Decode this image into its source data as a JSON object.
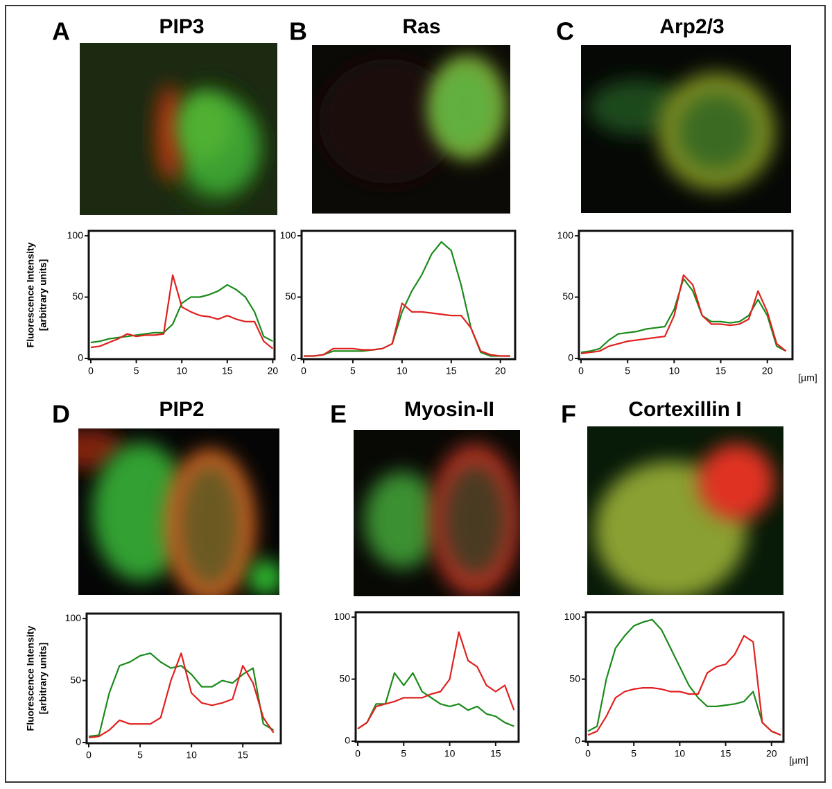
{
  "chart_data": [
    {
      "type": "line",
      "panel": "A",
      "title": "PIP3",
      "ylabel": [
        "Fluorescence Intensity",
        "[arbitrary units]"
      ],
      "x": [
        0,
        1,
        2,
        3,
        4,
        5,
        6,
        7,
        8,
        9,
        10,
        11,
        12,
        13,
        14,
        15,
        16,
        17,
        18,
        19,
        20
      ],
      "series": [
        {
          "color": "#1a8a1a",
          "values": [
            13,
            14,
            16,
            17,
            18,
            19,
            20,
            21,
            21,
            28,
            45,
            50,
            50,
            52,
            55,
            60,
            56,
            50,
            38,
            18,
            14
          ]
        },
        {
          "color": "#e0201f",
          "values": [
            9,
            10,
            13,
            16,
            20,
            18,
            19,
            19,
            20,
            68,
            42,
            38,
            35,
            34,
            32,
            35,
            32,
            30,
            30,
            14,
            8
          ]
        }
      ],
      "xlim": [
        0,
        20.2
      ],
      "ylim": [
        0,
        104
      ],
      "xticks": [
        0,
        5,
        10,
        15,
        20
      ],
      "yticks": [
        0,
        50,
        100
      ]
    },
    {
      "type": "line",
      "panel": "B",
      "title": "Ras",
      "x": [
        0,
        1,
        2,
        3,
        4,
        5,
        6,
        7,
        8,
        9,
        10,
        11,
        12,
        13,
        14,
        15,
        16,
        17,
        18,
        19,
        20,
        21
      ],
      "series": [
        {
          "color": "#1a8a1a",
          "values": [
            2,
            2,
            3,
            6,
            6,
            6,
            6,
            7,
            8,
            12,
            38,
            55,
            68,
            85,
            95,
            88,
            60,
            25,
            5,
            2,
            2,
            2
          ]
        },
        {
          "color": "#e0201f",
          "values": [
            2,
            2,
            3,
            8,
            8,
            8,
            7,
            7,
            8,
            12,
            45,
            38,
            38,
            37,
            36,
            35,
            35,
            25,
            6,
            3,
            2,
            2
          ]
        }
      ],
      "xlim": [
        0,
        21.5
      ],
      "ylim": [
        0,
        104
      ],
      "xticks": [
        0,
        5,
        10,
        15,
        20
      ],
      "yticks": [
        0,
        50,
        100
      ]
    },
    {
      "type": "line",
      "panel": "C",
      "title": "Arp2/3",
      "xunit": "[µm]",
      "x": [
        0,
        1,
        2,
        3,
        4,
        5,
        6,
        7,
        8,
        9,
        10,
        11,
        12,
        13,
        14,
        15,
        16,
        17,
        18,
        19,
        20,
        21,
        22
      ],
      "series": [
        {
          "color": "#1a8a1a",
          "values": [
            5,
            6,
            8,
            15,
            20,
            21,
            22,
            24,
            25,
            26,
            40,
            65,
            55,
            35,
            30,
            30,
            29,
            30,
            35,
            48,
            35,
            10,
            6
          ]
        },
        {
          "color": "#e0201f",
          "values": [
            4,
            5,
            6,
            10,
            12,
            14,
            15,
            16,
            17,
            18,
            35,
            68,
            60,
            35,
            28,
            28,
            27,
            28,
            32,
            55,
            38,
            12,
            6
          ]
        }
      ],
      "xlim": [
        0,
        22.7
      ],
      "ylim": [
        0,
        104
      ],
      "xticks": [
        0,
        5,
        10,
        15,
        20
      ],
      "yticks": [
        0,
        50,
        100
      ]
    },
    {
      "type": "line",
      "panel": "D",
      "title": "PIP2",
      "ylabel": [
        "Fluorescence Intensity",
        "[arbitrary units]"
      ],
      "x": [
        0,
        1,
        2,
        3,
        4,
        5,
        6,
        7,
        8,
        9,
        10,
        11,
        12,
        13,
        14,
        15,
        16,
        17,
        18
      ],
      "series": [
        {
          "color": "#1a8a1a",
          "values": [
            5,
            6,
            40,
            62,
            65,
            70,
            72,
            65,
            60,
            62,
            55,
            45,
            45,
            50,
            48,
            55,
            60,
            15,
            10
          ]
        },
        {
          "color": "#e0201f",
          "values": [
            4,
            5,
            10,
            18,
            15,
            15,
            15,
            20,
            50,
            72,
            40,
            32,
            30,
            32,
            35,
            62,
            48,
            20,
            8
          ]
        }
      ],
      "xlim": [
        0,
        18.7
      ],
      "ylim": [
        0,
        104
      ],
      "xticks": [
        0,
        5,
        10,
        15
      ],
      "yticks": [
        0,
        50,
        100
      ]
    },
    {
      "type": "line",
      "panel": "E",
      "title": "Myosin-II",
      "x": [
        0,
        1,
        2,
        3,
        4,
        5,
        6,
        7,
        8,
        9,
        10,
        11,
        12,
        13,
        14,
        15,
        16,
        17
      ],
      "series": [
        {
          "color": "#1a8a1a",
          "values": [
            10,
            15,
            30,
            30,
            55,
            45,
            55,
            40,
            35,
            30,
            28,
            30,
            25,
            28,
            22,
            20,
            15,
            12
          ]
        },
        {
          "color": "#e0201f",
          "values": [
            10,
            15,
            28,
            30,
            32,
            35,
            35,
            35,
            38,
            40,
            50,
            88,
            65,
            60,
            45,
            40,
            45,
            25
          ]
        }
      ],
      "xlim": [
        0,
        17.5
      ],
      "ylim": [
        0,
        104
      ],
      "xticks": [
        0,
        5,
        10,
        15
      ],
      "yticks": [
        0,
        50,
        100
      ]
    },
    {
      "type": "line",
      "panel": "F",
      "title": "Cortexillin I",
      "xunit": "[µm]",
      "x": [
        0,
        1,
        2,
        3,
        4,
        5,
        6,
        7,
        8,
        9,
        10,
        11,
        12,
        13,
        14,
        15,
        16,
        17,
        18,
        19,
        20,
        21
      ],
      "series": [
        {
          "color": "#1a8a1a",
          "values": [
            8,
            12,
            50,
            75,
            85,
            93,
            96,
            98,
            90,
            75,
            60,
            45,
            35,
            28,
            28,
            29,
            30,
            32,
            40,
            15,
            8,
            5
          ]
        },
        {
          "color": "#e0201f",
          "values": [
            5,
            8,
            20,
            35,
            40,
            42,
            43,
            43,
            42,
            40,
            40,
            38,
            38,
            55,
            60,
            62,
            70,
            85,
            80,
            15,
            8,
            5
          ]
        }
      ],
      "xlim": [
        0,
        21.3
      ],
      "ylim": [
        0,
        104
      ],
      "xticks": [
        0,
        5,
        10,
        15,
        20
      ],
      "yticks": [
        0,
        50,
        100
      ]
    }
  ]
}
